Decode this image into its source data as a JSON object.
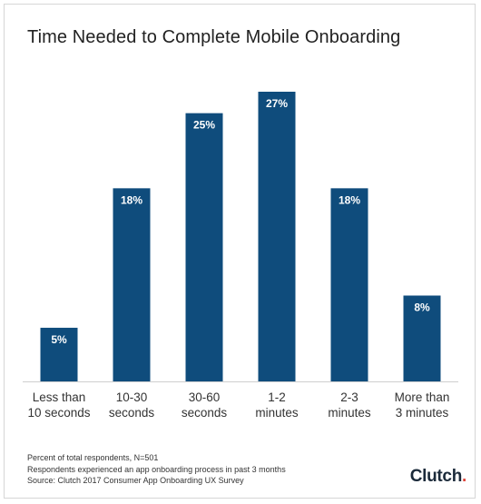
{
  "chart_data": {
    "type": "bar",
    "title": "Time Needed to Complete Mobile Onboarding",
    "categories": [
      [
        "Less than",
        "10 seconds"
      ],
      [
        "10-30",
        "seconds"
      ],
      [
        "30-60",
        "seconds"
      ],
      [
        "1-2",
        "minutes"
      ],
      [
        "2-3",
        "minutes"
      ],
      [
        "More than",
        "3 minutes"
      ]
    ],
    "values": [
      5,
      18,
      25,
      27,
      18,
      8
    ],
    "value_labels": [
      "5%",
      "18%",
      "25%",
      "27%",
      "18%",
      "8%"
    ],
    "unit": "%",
    "ylim": [
      0,
      27
    ],
    "grid": false,
    "bar_color": "#0f4c7c"
  },
  "footer": {
    "line1": "Percent of total respondents, N=501",
    "line2": "Respondents experienced an app onboarding process in past 3 months",
    "line3": "Source: Clutch 2017 Consumer App Onboarding UX Survey"
  },
  "logo": {
    "text": "Clutch",
    "dot": "."
  }
}
